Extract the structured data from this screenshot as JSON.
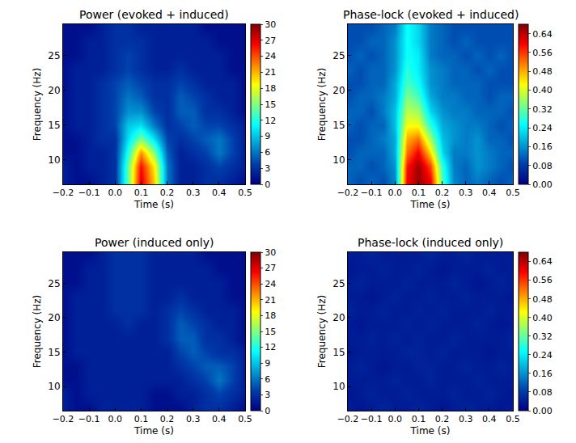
{
  "chart_data": [
    {
      "type": "heatmap",
      "title": "Power (evoked + induced)",
      "x_label": "Time (s)",
      "y_label": "Frequency (Hz)",
      "color": "jet",
      "x": [
        -0.2,
        -0.15,
        -0.1,
        -0.05,
        0,
        0.05,
        0.1,
        0.15,
        0.2,
        0.25,
        0.3,
        0.35,
        0.4,
        0.45,
        0.5
      ],
      "y": [
        7,
        9,
        11,
        13,
        15,
        17,
        19,
        21,
        23,
        25,
        27,
        29
      ],
      "z": [
        [
          2,
          1,
          1,
          2,
          3,
          14,
          27,
          20,
          6,
          2,
          2,
          3,
          3,
          2,
          1
        ],
        [
          2,
          1,
          2,
          2,
          3,
          14,
          26,
          19,
          6,
          2,
          2,
          3,
          4,
          3,
          2
        ],
        [
          1,
          1,
          2,
          2,
          3,
          12,
          22,
          15,
          5,
          2,
          3,
          4,
          6,
          4,
          2
        ],
        [
          1,
          1,
          2,
          3,
          3,
          10,
          15,
          10,
          4,
          3,
          4,
          5,
          6,
          4,
          2
        ],
        [
          1,
          2,
          2,
          3,
          4,
          9,
          10,
          6,
          3,
          4,
          5,
          4,
          4,
          3,
          2
        ],
        [
          1,
          2,
          2,
          3,
          4,
          7,
          7,
          4,
          3,
          5,
          5,
          3,
          3,
          2,
          1
        ],
        [
          1,
          2,
          2,
          3,
          4,
          6,
          5,
          3,
          3,
          5,
          4,
          3,
          2,
          2,
          1
        ],
        [
          1,
          2,
          2,
          3,
          4,
          5,
          4,
          3,
          3,
          4,
          3,
          2,
          2,
          2,
          1
        ],
        [
          1,
          2,
          2,
          2,
          3,
          4,
          3,
          2,
          2,
          3,
          2,
          2,
          2,
          1,
          1
        ],
        [
          1,
          1,
          2,
          2,
          3,
          4,
          3,
          2,
          2,
          2,
          2,
          2,
          2,
          1,
          1
        ],
        [
          1,
          1,
          2,
          2,
          3,
          3,
          3,
          2,
          2,
          2,
          2,
          2,
          1,
          1,
          1
        ],
        [
          1,
          1,
          1,
          2,
          3,
          3,
          2,
          2,
          2,
          2,
          2,
          1,
          1,
          1,
          1
        ]
      ],
      "xlim": [
        -0.2,
        0.5
      ],
      "xticks": [
        {
          "value": -0.2,
          "label": "−0.2"
        },
        {
          "value": -0.1,
          "label": "−0.1"
        },
        {
          "value": 0,
          "label": "0.0"
        },
        0.1,
        0.2,
        0.3,
        0.4,
        0.5
      ],
      "ylim": [
        6.5,
        29.5
      ],
      "yticks": [
        10,
        15,
        20,
        25
      ],
      "zlim": [
        0,
        30
      ],
      "zticks": [
        0,
        3,
        6,
        9,
        12,
        15,
        18,
        21,
        24,
        27,
        30
      ]
    },
    {
      "type": "heatmap",
      "title": "Phase-lock (evoked + induced)",
      "x_label": "Time (s)",
      "y_label": "Frequency (Hz)",
      "color": "jet",
      "x": [
        -0.2,
        -0.15,
        -0.1,
        -0.05,
        0,
        0.05,
        0.1,
        0.15,
        0.2,
        0.25,
        0.3,
        0.35,
        0.4,
        0.45,
        0.5
      ],
      "y": [
        7,
        9,
        11,
        13,
        15,
        17,
        19,
        21,
        23,
        25,
        27,
        29
      ],
      "z": [
        [
          0.12,
          0.1,
          0.12,
          0.1,
          0.15,
          0.6,
          0.66,
          0.6,
          0.3,
          0.15,
          0.12,
          0.14,
          0.12,
          0.1,
          0.12
        ],
        [
          0.12,
          0.12,
          0.1,
          0.12,
          0.16,
          0.58,
          0.66,
          0.55,
          0.28,
          0.14,
          0.12,
          0.16,
          0.14,
          0.12,
          0.1
        ],
        [
          0.1,
          0.12,
          0.12,
          0.12,
          0.18,
          0.52,
          0.6,
          0.45,
          0.22,
          0.14,
          0.14,
          0.16,
          0.14,
          0.12,
          0.12
        ],
        [
          0.1,
          0.1,
          0.12,
          0.14,
          0.18,
          0.48,
          0.52,
          0.36,
          0.2,
          0.16,
          0.14,
          0.16,
          0.12,
          0.12,
          0.1
        ],
        [
          0.12,
          0.1,
          0.12,
          0.12,
          0.2,
          0.42,
          0.42,
          0.28,
          0.18,
          0.16,
          0.14,
          0.14,
          0.12,
          0.1,
          0.12
        ],
        [
          0.12,
          0.12,
          0.1,
          0.14,
          0.2,
          0.38,
          0.36,
          0.22,
          0.16,
          0.14,
          0.14,
          0.12,
          0.12,
          0.12,
          0.1
        ],
        [
          0.1,
          0.12,
          0.12,
          0.14,
          0.18,
          0.34,
          0.3,
          0.18,
          0.14,
          0.14,
          0.12,
          0.12,
          0.1,
          0.12,
          0.12
        ],
        [
          0.1,
          0.1,
          0.12,
          0.12,
          0.18,
          0.3,
          0.26,
          0.16,
          0.14,
          0.12,
          0.12,
          0.12,
          0.1,
          0.1,
          0.1
        ],
        [
          0.12,
          0.1,
          0.12,
          0.12,
          0.16,
          0.28,
          0.24,
          0.16,
          0.14,
          0.12,
          0.12,
          0.1,
          0.12,
          0.1,
          0.1
        ],
        [
          0.1,
          0.12,
          0.1,
          0.12,
          0.16,
          0.26,
          0.24,
          0.14,
          0.12,
          0.12,
          0.1,
          0.12,
          0.1,
          0.12,
          0.1
        ],
        [
          0.1,
          0.1,
          0.12,
          0.12,
          0.16,
          0.26,
          0.22,
          0.14,
          0.12,
          0.1,
          0.12,
          0.1,
          0.1,
          0.1,
          0.1
        ],
        [
          0.1,
          0.1,
          0.1,
          0.12,
          0.14,
          0.26,
          0.22,
          0.14,
          0.12,
          0.1,
          0.1,
          0.1,
          0.1,
          0.1,
          0.1
        ]
      ],
      "xlim": [
        -0.2,
        0.5
      ],
      "xticks": [
        {
          "value": -0.2,
          "label": "−0.2"
        },
        {
          "value": -0.1,
          "label": "−0.1"
        },
        {
          "value": 0,
          "label": "0.0"
        },
        0.1,
        0.2,
        0.3,
        0.4,
        0.5
      ],
      "ylim": [
        6.5,
        29.5
      ],
      "yticks": [
        10,
        15,
        20,
        25
      ],
      "zlim": [
        0,
        0.68
      ],
      "zticks": [
        {
          "value": 0,
          "label": "0.00"
        },
        {
          "value": 0.08,
          "label": "0.08"
        },
        0.16,
        0.24,
        0.32,
        {
          "value": 0.4,
          "label": "0.40"
        },
        0.48,
        0.56,
        0.64
      ]
    },
    {
      "type": "heatmap",
      "title": "Power (induced only)",
      "x_label": "Time (s)",
      "y_label": "Frequency (Hz)",
      "color": "jet",
      "x": [
        -0.2,
        -0.15,
        -0.1,
        -0.05,
        0,
        0.05,
        0.1,
        0.15,
        0.2,
        0.25,
        0.3,
        0.35,
        0.4,
        0.45,
        0.5
      ],
      "y": [
        7,
        9,
        11,
        13,
        15,
        17,
        19,
        21,
        23,
        25,
        27,
        29
      ],
      "z": [
        [
          2,
          1,
          1,
          2,
          2,
          2,
          2,
          1,
          1,
          1,
          2,
          3,
          3,
          2,
          1
        ],
        [
          2,
          1,
          2,
          2,
          2,
          2,
          2,
          1,
          1,
          2,
          2,
          3,
          4,
          3,
          2
        ],
        [
          1,
          1,
          2,
          2,
          2,
          2,
          2,
          2,
          2,
          2,
          3,
          4,
          6,
          4,
          2
        ],
        [
          1,
          1,
          2,
          2,
          2,
          2,
          2,
          2,
          2,
          3,
          4,
          5,
          5,
          4,
          2
        ],
        [
          1,
          2,
          2,
          2,
          2,
          2,
          2,
          2,
          2,
          4,
          5,
          4,
          3,
          3,
          2
        ],
        [
          1,
          2,
          2,
          2,
          2,
          2,
          2,
          2,
          3,
          5,
          5,
          3,
          3,
          2,
          1
        ],
        [
          1,
          2,
          2,
          2,
          2,
          3,
          2,
          2,
          3,
          5,
          4,
          3,
          2,
          2,
          1
        ],
        [
          1,
          2,
          2,
          2,
          3,
          3,
          3,
          2,
          3,
          4,
          3,
          2,
          2,
          2,
          1
        ],
        [
          1,
          2,
          2,
          2,
          3,
          3,
          3,
          2,
          2,
          3,
          2,
          2,
          2,
          1,
          1
        ],
        [
          1,
          1,
          2,
          2,
          3,
          3,
          3,
          2,
          2,
          2,
          2,
          2,
          2,
          1,
          1
        ],
        [
          1,
          1,
          2,
          2,
          3,
          3,
          3,
          2,
          2,
          2,
          2,
          2,
          1,
          1,
          1
        ],
        [
          1,
          1,
          1,
          2,
          3,
          3,
          3,
          2,
          2,
          2,
          2,
          1,
          1,
          1,
          1
        ]
      ],
      "xlim": [
        -0.2,
        0.5
      ],
      "xticks": [
        {
          "value": -0.2,
          "label": "−0.2"
        },
        {
          "value": -0.1,
          "label": "−0.1"
        },
        {
          "value": 0,
          "label": "0.0"
        },
        0.1,
        0.2,
        0.3,
        0.4,
        0.5
      ],
      "ylim": [
        6.5,
        29.5
      ],
      "yticks": [
        10,
        15,
        20,
        25
      ],
      "zlim": [
        0,
        30
      ],
      "zticks": [
        0,
        3,
        6,
        9,
        12,
        15,
        18,
        21,
        24,
        27,
        30
      ]
    },
    {
      "type": "heatmap",
      "title": "Phase-lock (induced only)",
      "x_label": "Time (s)",
      "y_label": "Frequency (Hz)",
      "color": "jet",
      "x": [
        -0.2,
        -0.15,
        -0.1,
        -0.05,
        0,
        0.05,
        0.1,
        0.15,
        0.2,
        0.25,
        0.3,
        0.35,
        0.4,
        0.45,
        0.5
      ],
      "y": [
        7,
        9,
        11,
        13,
        15,
        17,
        19,
        21,
        23,
        25,
        27,
        29
      ],
      "z": [
        [
          0.04,
          0.03,
          0.04,
          0.05,
          0.04,
          0.04,
          0.05,
          0.04,
          0.03,
          0.04,
          0.05,
          0.04,
          0.04,
          0.03,
          0.04
        ],
        [
          0.03,
          0.04,
          0.05,
          0.04,
          0.04,
          0.05,
          0.04,
          0.04,
          0.04,
          0.05,
          0.04,
          0.04,
          0.05,
          0.04,
          0.03
        ],
        [
          0.04,
          0.04,
          0.04,
          0.04,
          0.05,
          0.04,
          0.04,
          0.05,
          0.04,
          0.04,
          0.04,
          0.05,
          0.04,
          0.04,
          0.04
        ],
        [
          0.04,
          0.05,
          0.04,
          0.03,
          0.04,
          0.04,
          0.05,
          0.05,
          0.04,
          0.04,
          0.05,
          0.04,
          0.04,
          0.05,
          0.04
        ],
        [
          0.03,
          0.04,
          0.04,
          0.04,
          0.04,
          0.05,
          0.05,
          0.04,
          0.05,
          0.04,
          0.04,
          0.04,
          0.03,
          0.04,
          0.04
        ],
        [
          0.04,
          0.04,
          0.05,
          0.04,
          0.05,
          0.04,
          0.05,
          0.04,
          0.04,
          0.05,
          0.04,
          0.04,
          0.04,
          0.04,
          0.05
        ],
        [
          0.04,
          0.03,
          0.04,
          0.04,
          0.04,
          0.05,
          0.04,
          0.05,
          0.04,
          0.04,
          0.04,
          0.05,
          0.04,
          0.03,
          0.04
        ],
        [
          0.05,
          0.04,
          0.04,
          0.05,
          0.04,
          0.04,
          0.05,
          0.04,
          0.05,
          0.04,
          0.04,
          0.04,
          0.05,
          0.04,
          0.04
        ],
        [
          0.04,
          0.04,
          0.03,
          0.04,
          0.05,
          0.04,
          0.04,
          0.05,
          0.04,
          0.04,
          0.05,
          0.04,
          0.04,
          0.04,
          0.03
        ],
        [
          0.04,
          0.05,
          0.04,
          0.04,
          0.04,
          0.05,
          0.04,
          0.04,
          0.04,
          0.05,
          0.04,
          0.03,
          0.04,
          0.05,
          0.04
        ],
        [
          0.03,
          0.04,
          0.04,
          0.05,
          0.04,
          0.04,
          0.05,
          0.04,
          0.03,
          0.04,
          0.04,
          0.04,
          0.05,
          0.04,
          0.04
        ],
        [
          0.04,
          0.04,
          0.05,
          0.04,
          0.04,
          0.04,
          0.04,
          0.05,
          0.04,
          0.04,
          0.05,
          0.04,
          0.04,
          0.04,
          0.04
        ]
      ],
      "xlim": [
        -0.2,
        0.5
      ],
      "xticks": [
        {
          "value": -0.2,
          "label": "−0.2"
        },
        {
          "value": -0.1,
          "label": "−0.1"
        },
        {
          "value": 0,
          "label": "0.0"
        },
        0.1,
        0.2,
        0.3,
        0.4,
        0.5
      ],
      "ylim": [
        6.5,
        29.5
      ],
      "yticks": [
        10,
        15,
        20,
        25
      ],
      "zlim": [
        0,
        0.68
      ],
      "zticks": [
        {
          "value": 0,
          "label": "0.00"
        },
        {
          "value": 0.08,
          "label": "0.08"
        },
        0.16,
        0.24,
        0.32,
        {
          "value": 0.4,
          "label": "0.40"
        },
        0.48,
        0.56,
        0.64
      ]
    }
  ]
}
